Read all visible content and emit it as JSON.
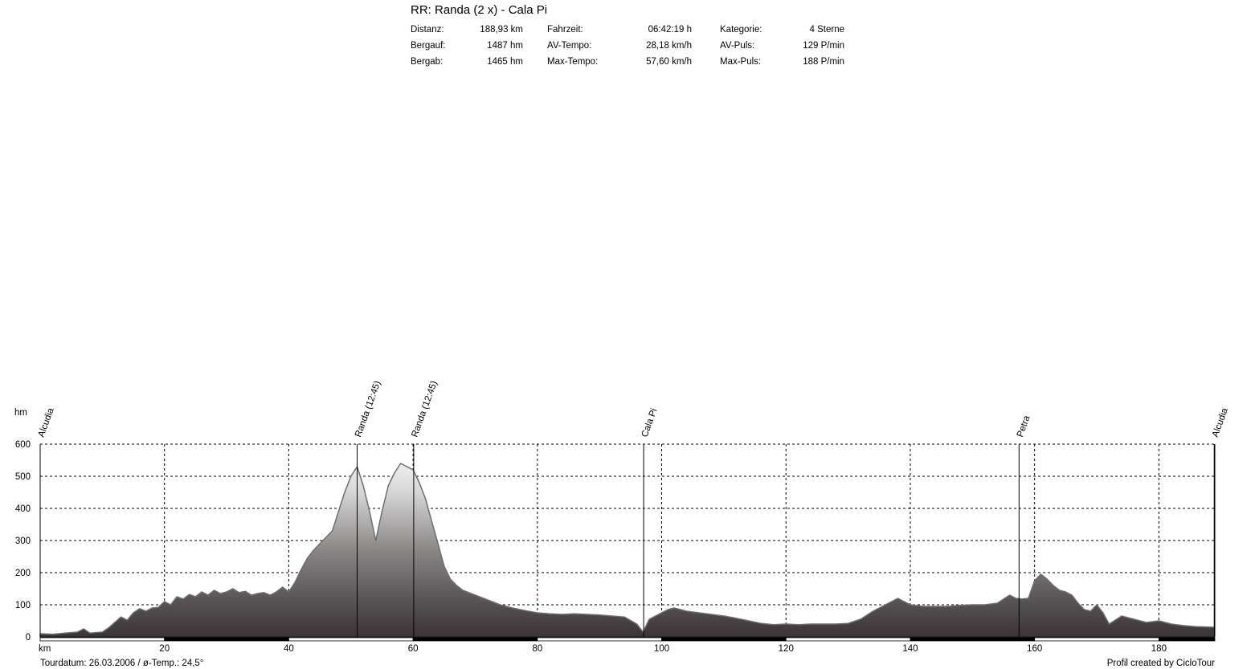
{
  "title": "RR: Randa (2 x) - Cala Pi",
  "stats": [
    [
      {
        "label": "Distanz:",
        "value": "188,93 km"
      },
      {
        "label": "Fahrzeit:",
        "value": "06:42:19 h"
      },
      {
        "label": "Kategorie:",
        "value": "4 Sterne"
      }
    ],
    [
      {
        "label": "Bergauf:",
        "value": "1487 hm"
      },
      {
        "label": "AV-Tempo:",
        "value": "28,18 km/h"
      },
      {
        "label": "AV-Puls:",
        "value": "129 P/min"
      }
    ],
    [
      {
        "label": "Bergab:",
        "value": "1465 hm"
      },
      {
        "label": "Max-Tempo:",
        "value": "57,60 km/h"
      },
      {
        "label": "Max-Puls:",
        "value": "188 P/min"
      }
    ]
  ],
  "footer": {
    "left": "Tourdatum: 26.03.2006  /  ø-Temp.: 24,5°",
    "right": "Profil created by CicloTour"
  },
  "chart_data": {
    "type": "area",
    "xlabel": "km",
    "ylabel": "hm",
    "xlim": [
      0,
      189
    ],
    "ylim": [
      0,
      600
    ],
    "x_ticks": [
      20,
      40,
      60,
      80,
      100,
      120,
      140,
      160,
      180
    ],
    "y_ticks": [
      0,
      100,
      200,
      300,
      400,
      500,
      600
    ],
    "grid": true,
    "waypoints": [
      {
        "name": "Alcudia",
        "km": 0
      },
      {
        "name": "Randa (12:45)",
        "km": 51
      },
      {
        "name": "Randa (12:45)",
        "km": 60.1
      },
      {
        "name": "Cala Pi",
        "km": 97.1
      },
      {
        "name": "Petra",
        "km": 157.5
      },
      {
        "name": "Alcudia",
        "km": 188.9
      }
    ],
    "series": [
      {
        "x": [
          0,
          2,
          4,
          6,
          7,
          8,
          10,
          11,
          12,
          13,
          14,
          15,
          16,
          17,
          18,
          19,
          20,
          21,
          22,
          23,
          24,
          25,
          26,
          27,
          28,
          29,
          30,
          31,
          32,
          33,
          34,
          35,
          36,
          37,
          38,
          39,
          40,
          41,
          42,
          43,
          44,
          45,
          46,
          47,
          48,
          49,
          50,
          51,
          52,
          53,
          54,
          55,
          56,
          57,
          58,
          59,
          60,
          61,
          62,
          63,
          64,
          65,
          66,
          67,
          68,
          70,
          72,
          74,
          76,
          78,
          80,
          82,
          84,
          86,
          88,
          90,
          92,
          94,
          96,
          97,
          98,
          99,
          100,
          101,
          102,
          103,
          104,
          106,
          108,
          110,
          112,
          114,
          116,
          118,
          120,
          122,
          124,
          126,
          128,
          130,
          132,
          134,
          136,
          138,
          140,
          142,
          144,
          146,
          148,
          150,
          152,
          154,
          156,
          157,
          158,
          159,
          160,
          161,
          162,
          163,
          164,
          165,
          166,
          167,
          168,
          169,
          170,
          171,
          172,
          174,
          176,
          178,
          180,
          182,
          184,
          186,
          188.9
        ],
        "y": [
          10,
          8,
          12,
          15,
          25,
          12,
          15,
          28,
          45,
          62,
          52,
          75,
          88,
          80,
          90,
          92,
          110,
          100,
          125,
          118,
          132,
          125,
          140,
          130,
          145,
          135,
          140,
          150,
          138,
          142,
          130,
          135,
          138,
          130,
          140,
          155,
          140,
          170,
          210,
          245,
          270,
          290,
          310,
          330,
          390,
          450,
          500,
          530,
          470,
          390,
          300,
          390,
          470,
          510,
          540,
          530,
          520,
          480,
          430,
          360,
          290,
          220,
          180,
          160,
          145,
          130,
          115,
          100,
          90,
          82,
          75,
          72,
          70,
          72,
          70,
          68,
          65,
          62,
          40,
          15,
          55,
          65,
          75,
          85,
          90,
          85,
          80,
          75,
          70,
          65,
          58,
          50,
          42,
          38,
          40,
          38,
          40,
          40,
          40,
          42,
          55,
          80,
          100,
          120,
          100,
          95,
          95,
          95,
          98,
          100,
          100,
          105,
          130,
          120,
          118,
          120,
          175,
          195,
          180,
          160,
          145,
          140,
          130,
          105,
          85,
          80,
          100,
          75,
          40,
          65,
          55,
          45,
          50,
          40,
          35,
          32,
          30
        ]
      }
    ]
  }
}
